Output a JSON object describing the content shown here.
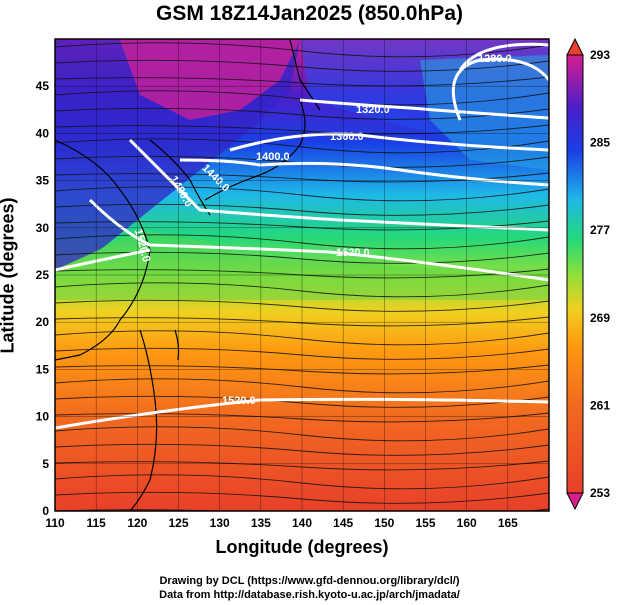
{
  "title": "GSM 18Z14Jan2025 (850.0hPa)",
  "x_axis": {
    "label": "Longitude (degrees)",
    "ticks": [
      110,
      115,
      120,
      125,
      130,
      135,
      140,
      145,
      150,
      155,
      160,
      165
    ],
    "range": [
      110,
      170
    ]
  },
  "y_axis": {
    "label": "Latitude  (degrees)",
    "ticks": [
      0,
      5,
      10,
      15,
      20,
      25,
      30,
      35,
      40,
      45
    ],
    "range": [
      0,
      50
    ]
  },
  "colorbar": {
    "ticks": [
      253,
      261,
      269,
      277,
      285,
      293
    ],
    "range": [
      253,
      293
    ],
    "colors": [
      "#e600b4",
      "#9933cc",
      "#3322cc",
      "#2266ff",
      "#00bbff",
      "#00dd99",
      "#33cc33",
      "#ccee22",
      "#ffcc00",
      "#ff8800",
      "#ee3322"
    ]
  },
  "contours": [
    {
      "label": "1280.0"
    },
    {
      "label": "1320.0"
    },
    {
      "label": "1360.0"
    },
    {
      "label": "1400.0"
    },
    {
      "label": "1440.0"
    },
    {
      "label": "1480.0"
    },
    {
      "label": "1520.0"
    },
    {
      "label": "1520.0"
    },
    {
      "label": "1520.0"
    }
  ],
  "credits": {
    "line1": "Drawing by DCL (https://www.gfd-dennou.org/library/dcl/)",
    "line2": "Data from http://database.rish.kyoto-u.ac.jp/arch/jmadata/"
  }
}
